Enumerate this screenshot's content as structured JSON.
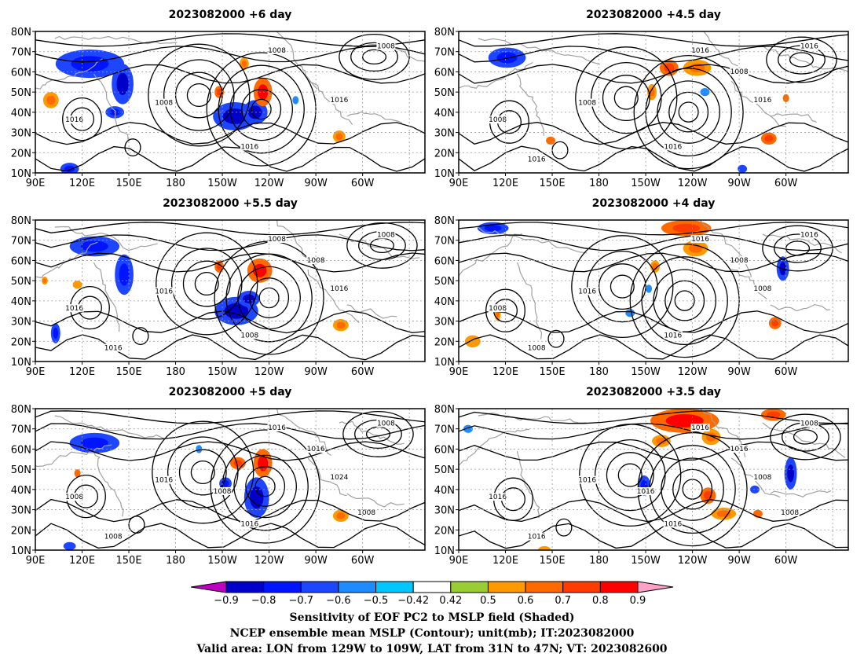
{
  "panels": [
    {
      "id": "p6",
      "title": "2023082000 +6 day",
      "contour_labels": [
        "1008",
        "1016",
        "1008",
        "1016",
        "1016",
        "1008"
      ],
      "features": [
        {
          "lon": 125,
          "lat": 64,
          "rx": 22,
          "ry": 7,
          "level": -0.6,
          "core": -0.7
        },
        {
          "lon": 146,
          "lat": 54,
          "rx": 7,
          "ry": 10,
          "level": -0.6,
          "core": -0.8
        },
        {
          "lon": 141,
          "lat": 40,
          "rx": 6,
          "ry": 3,
          "level": -0.6,
          "core": -0.7
        },
        {
          "lon": -142,
          "lat": 38,
          "rx": 14,
          "ry": 7,
          "level": -0.6,
          "core": -0.8
        },
        {
          "lon": -129,
          "lat": 40,
          "rx": 8,
          "ry": 6,
          "level": -0.6,
          "core": -0.8
        },
        {
          "lon": -152,
          "lat": 50,
          "rx": 3,
          "ry": 3,
          "level": 0.6,
          "core": 0.7
        },
        {
          "lon": -124,
          "lat": 50,
          "rx": 6,
          "ry": 7,
          "level": 0.6,
          "core": 0.8
        },
        {
          "lon": -136,
          "lat": 64,
          "rx": 3,
          "ry": 3,
          "level": 0.5,
          "core": 0.6
        },
        {
          "lon": 100,
          "lat": 46,
          "rx": 5,
          "ry": 4,
          "level": 0.5,
          "core": 0.6
        },
        {
          "lon": 112,
          "lat": 12,
          "rx": 6,
          "ry": 3,
          "level": -0.6,
          "core": -0.7
        },
        {
          "lon": -103,
          "lat": 46,
          "rx": 2,
          "ry": 2,
          "level": -0.5,
          "core": -0.5
        },
        {
          "lon": -75,
          "lat": 28,
          "rx": 4,
          "ry": 3,
          "level": 0.5,
          "core": 0.6
        }
      ]
    },
    {
      "id": "p45",
      "title": "2023082000 +4.5 day",
      "contour_labels": [
        "1008",
        "1016",
        "1016",
        "1008",
        "1016",
        "1016",
        "1016",
        "1008"
      ],
      "features": [
        {
          "lon": 121,
          "lat": 67,
          "rx": 12,
          "ry": 5,
          "level": -0.6,
          "core": -0.7
        },
        {
          "lon": -146,
          "lat": 50,
          "rx": 3,
          "ry": 4,
          "level": 0.5,
          "core": 0.6
        },
        {
          "lon": -135,
          "lat": 62,
          "rx": 6,
          "ry": 4,
          "level": 0.6,
          "core": 0.7
        },
        {
          "lon": -117,
          "lat": 62,
          "rx": 9,
          "ry": 4,
          "level": 0.5,
          "core": 0.6
        },
        {
          "lon": -71,
          "lat": 27,
          "rx": 5,
          "ry": 3,
          "level": 0.6,
          "core": 0.7
        },
        {
          "lon": -60,
          "lat": 47,
          "rx": 2,
          "ry": 2,
          "level": 0.6,
          "core": 0.6
        },
        {
          "lon": -112,
          "lat": 50,
          "rx": 3,
          "ry": 2,
          "level": -0.5,
          "core": -0.5
        },
        {
          "lon": -88,
          "lat": 12,
          "rx": 3,
          "ry": 2,
          "level": -0.6,
          "core": -0.6
        },
        {
          "lon": 149,
          "lat": 26,
          "rx": 3,
          "ry": 2,
          "level": 0.6,
          "core": 0.6
        }
      ]
    },
    {
      "id": "p55",
      "title": "2023082000 +5.5 day",
      "contour_labels": [
        "1016",
        "1008",
        "1008",
        "1016",
        "1016",
        "1008",
        "1016",
        "1008"
      ],
      "features": [
        {
          "lon": 128,
          "lat": 67,
          "rx": 16,
          "ry": 5,
          "level": -0.6,
          "core": -0.7
        },
        {
          "lon": 147,
          "lat": 53,
          "rx": 6,
          "ry": 10,
          "level": -0.6,
          "core": -0.7
        },
        {
          "lon": -141,
          "lat": 35,
          "rx": 14,
          "ry": 7,
          "level": -0.6,
          "core": -0.8
        },
        {
          "lon": -133,
          "lat": 41,
          "rx": 7,
          "ry": 4,
          "level": -0.6,
          "core": -0.8
        },
        {
          "lon": -152,
          "lat": 57,
          "rx": 3,
          "ry": 3,
          "level": 0.6,
          "core": 0.7
        },
        {
          "lon": -126,
          "lat": 55,
          "rx": 8,
          "ry": 6,
          "level": 0.6,
          "core": 0.8
        },
        {
          "lon": -74,
          "lat": 28,
          "rx": 5,
          "ry": 3,
          "level": 0.5,
          "core": 0.6
        },
        {
          "lon": 103,
          "lat": 24,
          "rx": 3,
          "ry": 5,
          "level": -0.6,
          "core": -0.7
        },
        {
          "lon": 96,
          "lat": 50,
          "rx": 2,
          "ry": 2,
          "level": 0.5,
          "core": 0.6
        },
        {
          "lon": 117,
          "lat": 48,
          "rx": 3,
          "ry": 2,
          "level": 0.5,
          "core": 0.5
        }
      ]
    },
    {
      "id": "p4",
      "title": "2023082000 +4 day",
      "contour_labels": [
        "1016",
        "1016",
        "1016",
        "1008",
        "1008",
        "1016",
        "1008",
        "1008"
      ],
      "features": [
        {
          "lon": 112,
          "lat": 76,
          "rx": 10,
          "ry": 3,
          "level": -0.6,
          "core": -0.7
        },
        {
          "lon": -124,
          "lat": 76,
          "rx": 16,
          "ry": 4,
          "level": 0.6,
          "core": 0.7
        },
        {
          "lon": -118,
          "lat": 66,
          "rx": 8,
          "ry": 4,
          "level": 0.5,
          "core": 0.6
        },
        {
          "lon": -144,
          "lat": 57,
          "rx": 3,
          "ry": 3,
          "level": 0.5,
          "core": 0.6
        },
        {
          "lon": -62,
          "lat": 56,
          "rx": 4,
          "ry": 6,
          "level": -0.6,
          "core": -0.8
        },
        {
          "lon": -67,
          "lat": 29,
          "rx": 4,
          "ry": 3,
          "level": 0.6,
          "core": 0.7
        },
        {
          "lon": 99,
          "lat": 20,
          "rx": 5,
          "ry": 3,
          "level": 0.5,
          "core": 0.5
        },
        {
          "lon": 115,
          "lat": 34,
          "rx": 2,
          "ry": 4,
          "level": 0.5,
          "core": 0.6
        },
        {
          "lon": -160,
          "lat": 34,
          "rx": 3,
          "ry": 2,
          "level": -0.5,
          "core": -0.5
        },
        {
          "lon": -148,
          "lat": 46,
          "rx": 2,
          "ry": 2,
          "level": -0.5,
          "core": -0.5
        }
      ]
    },
    {
      "id": "p5",
      "title": "2023082000 +5 day",
      "contour_labels": [
        "1016",
        "1016",
        "1016",
        "1008",
        "1024",
        "1008",
        "1008",
        "1016",
        "1008",
        "1008"
      ],
      "features": [
        {
          "lon": 128,
          "lat": 63,
          "rx": 16,
          "ry": 5,
          "level": -0.6,
          "core": -0.7
        },
        {
          "lon": -128,
          "lat": 36,
          "rx": 8,
          "ry": 10,
          "level": -0.6,
          "core": -0.8
        },
        {
          "lon": -148,
          "lat": 43,
          "rx": 4,
          "ry": 3,
          "level": -0.6,
          "core": -0.7
        },
        {
          "lon": -140,
          "lat": 53,
          "rx": 5,
          "ry": 3,
          "level": 0.6,
          "core": 0.7
        },
        {
          "lon": -124,
          "lat": 53,
          "rx": 6,
          "ry": 7,
          "level": 0.6,
          "core": 0.8
        },
        {
          "lon": -74,
          "lat": 27,
          "rx": 5,
          "ry": 3,
          "level": 0.5,
          "core": 0.6
        },
        {
          "lon": 117,
          "lat": 48,
          "rx": 2,
          "ry": 2,
          "level": 0.6,
          "core": 0.6
        },
        {
          "lon": -165,
          "lat": 60,
          "rx": 2,
          "ry": 2,
          "level": -0.5,
          "core": -0.5
        },
        {
          "lon": 112,
          "lat": 12,
          "rx": 4,
          "ry": 2,
          "level": -0.6,
          "core": -0.6
        }
      ]
    },
    {
      "id": "p35",
      "title": "2023082000 +3.5 day",
      "contour_labels": [
        "1016",
        "1016",
        "1016",
        "1016",
        "1008",
        "1008",
        "1016",
        "1016",
        "1016",
        "1008"
      ],
      "features": [
        {
          "lon": -125,
          "lat": 74,
          "rx": 22,
          "ry": 6,
          "level": 0.6,
          "core": 0.8
        },
        {
          "lon": -140,
          "lat": 64,
          "rx": 6,
          "ry": 3,
          "level": 0.5,
          "core": 0.6
        },
        {
          "lon": -108,
          "lat": 66,
          "rx": 6,
          "ry": 4,
          "level": 0.5,
          "core": 0.6
        },
        {
          "lon": -68,
          "lat": 77,
          "rx": 8,
          "ry": 3,
          "level": 0.6,
          "core": 0.7
        },
        {
          "lon": -57,
          "lat": 48,
          "rx": 4,
          "ry": 8,
          "level": -0.6,
          "core": -0.8
        },
        {
          "lon": -151,
          "lat": 42,
          "rx": 4,
          "ry": 5,
          "level": -0.6,
          "core": -0.7
        },
        {
          "lon": -110,
          "lat": 37,
          "rx": 5,
          "ry": 4,
          "level": 0.6,
          "core": 0.7
        },
        {
          "lon": -100,
          "lat": 28,
          "rx": 8,
          "ry": 3,
          "level": 0.5,
          "core": 0.6
        },
        {
          "lon": -80,
          "lat": 40,
          "rx": 3,
          "ry": 2,
          "level": -0.6,
          "core": -0.6
        },
        {
          "lon": 96,
          "lat": 70,
          "rx": 3,
          "ry": 2,
          "level": -0.5,
          "core": -0.5
        },
        {
          "lon": 145,
          "lat": 10,
          "rx": 4,
          "ry": 2,
          "level": 0.5,
          "core": 0.5
        },
        {
          "lon": -78,
          "lat": 28,
          "rx": 3,
          "ry": 2,
          "level": 0.6,
          "core": 0.6
        }
      ]
    }
  ],
  "axes": {
    "x_ticks": [
      "90E",
      "120E",
      "150E",
      "180",
      "150W",
      "120W",
      "90W",
      "60W"
    ],
    "y_ticks": [
      "10N",
      "20N",
      "30N",
      "40N",
      "50N",
      "60N",
      "70N",
      "80N"
    ],
    "lon_range": [
      90,
      340
    ],
    "lat_range": [
      10,
      80
    ]
  },
  "colorbar": {
    "ticks": [
      "−0.9",
      "−0.8",
      "−0.7",
      "−0.6",
      "−0.5",
      "−0.42",
      "0.42",
      "0.5",
      "0.6",
      "0.7",
      "0.8",
      "0.9"
    ],
    "levels": [
      -0.9,
      -0.8,
      -0.7,
      -0.6,
      -0.5,
      -0.42,
      0.42,
      0.5,
      0.6,
      0.7,
      0.8,
      0.9
    ],
    "colors": [
      "#c000c0",
      "#0000c8",
      "#0014ff",
      "#1e46ff",
      "#1e8cff",
      "#00c8ff",
      "#ffffff",
      "#9acd32",
      "#ff9900",
      "#ff6a00",
      "#ff3c00",
      "#ff0000",
      "#ffa0c8"
    ]
  },
  "caption": [
    "Sensitivity of EOF PC2 to MSLP field (Shaded)",
    "NCEP ensemble mean MSLP (Contour); unit(mb); IT:2023082000",
    "Valid area: LON from 129W to 109W, LAT from 31N to 47N; VT: 2023082600"
  ]
}
